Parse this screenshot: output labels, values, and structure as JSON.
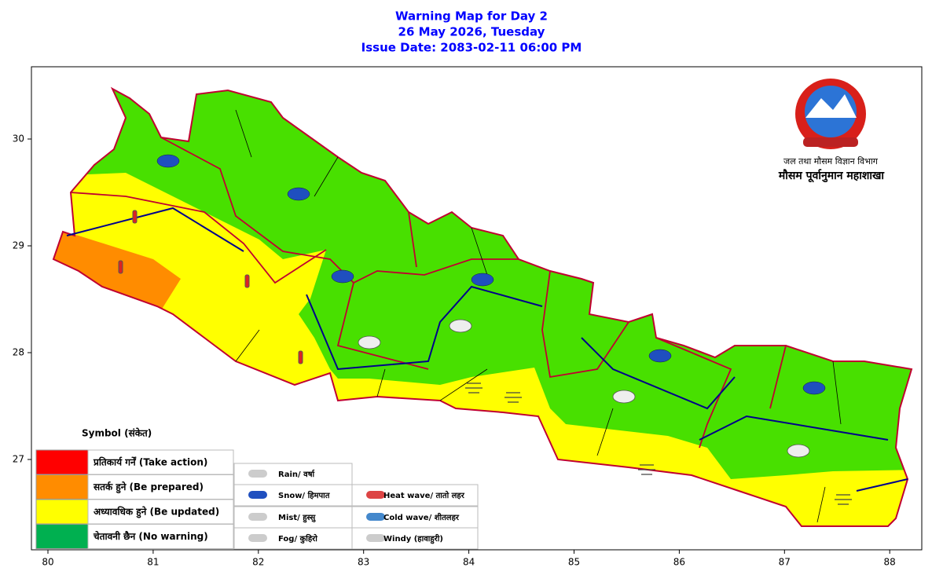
{
  "header": {
    "title": "Warning Map for Day 2",
    "date": "26 May 2026, Tuesday",
    "issue": "Issue Date: 2083-02-11 06:00 PM"
  },
  "axes": {
    "xticks": [
      80,
      81,
      82,
      83,
      84,
      85,
      86,
      87,
      88
    ],
    "yticks": [
      27,
      28,
      29,
      30
    ]
  },
  "agency": {
    "department": "जल तथा मौसम विज्ञान विभाग",
    "division": "मौसम पूर्वानुमान महाशाखा"
  },
  "legend": {
    "title": "Symbol (संकेत)",
    "levels": [
      {
        "label": "प्रतिकार्य गर्नें (Take action)",
        "color": "#ff0000"
      },
      {
        "label": "सतर्क हुने (Be prepared)",
        "color": "#ff8c00"
      },
      {
        "label": "अध्यावधिक हुने (Be updated)",
        "color": "#ffff00"
      },
      {
        "label": "चेतावनी छैन (No warning)",
        "color": "#00b050"
      }
    ],
    "symbols": [
      "Rain/ वर्षा",
      "Snow/ हिमपात",
      "Mist/ हुस्सु",
      "Fog/ कुहिरो",
      "Heat wave/ तातो लहर",
      "Cold wave/ शीतलहर",
      "Windy (हावाहुरी)"
    ]
  }
}
